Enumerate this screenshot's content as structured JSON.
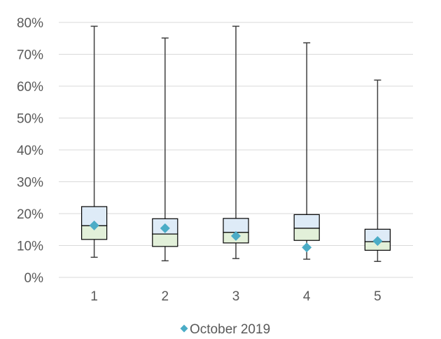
{
  "chart_data": {
    "type": "box",
    "categories": [
      "1",
      "2",
      "3",
      "4",
      "5"
    ],
    "ylim": [
      0,
      0.8
    ],
    "y_ticks": [
      {
        "value": 0.0,
        "label": "0%"
      },
      {
        "value": 0.1,
        "label": "10%"
      },
      {
        "value": 0.2,
        "label": "20%"
      },
      {
        "value": 0.3,
        "label": "30%"
      },
      {
        "value": 0.4,
        "label": "40%"
      },
      {
        "value": 0.5,
        "label": "50%"
      },
      {
        "value": 0.6,
        "label": "60%"
      },
      {
        "value": 0.7,
        "label": "70%"
      },
      {
        "value": 0.8,
        "label": "80%"
      }
    ],
    "boxes": [
      {
        "min": 0.063,
        "q1": 0.119,
        "median": 0.162,
        "q3": 0.222,
        "max": 0.788
      },
      {
        "min": 0.052,
        "q1": 0.097,
        "median": 0.136,
        "q3": 0.184,
        "max": 0.751
      },
      {
        "min": 0.059,
        "q1": 0.108,
        "median": 0.141,
        "q3": 0.185,
        "max": 0.788
      },
      {
        "min": 0.057,
        "q1": 0.116,
        "median": 0.154,
        "q3": 0.197,
        "max": 0.736
      },
      {
        "min": 0.05,
        "q1": 0.085,
        "median": 0.112,
        "q3": 0.151,
        "max": 0.619
      }
    ],
    "series": [
      {
        "name": "October 2019",
        "values": [
          0.163,
          0.154,
          0.13,
          0.094,
          0.114
        ]
      }
    ],
    "grid": true,
    "legend_position": "bottom",
    "colors": {
      "upper_box": "#DEEBF7",
      "lower_box": "#E2F0D9",
      "marker": "#4BACC6",
      "whisker": "#404040",
      "grid": "#D9D9D9",
      "text": "#595959"
    }
  }
}
